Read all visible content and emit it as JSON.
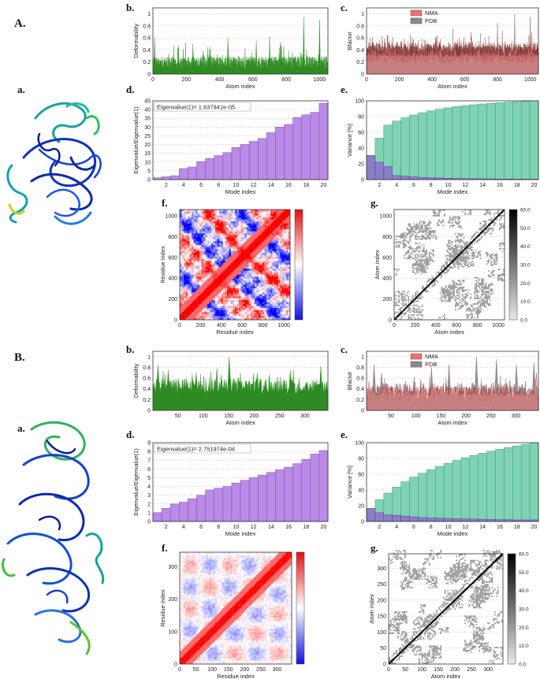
{
  "panel_labels": {
    "A": "A.",
    "Aa": "a.",
    "Ab": "b.",
    "Ac": "c.",
    "Ad": "d.",
    "Ae": "e.",
    "Af": "f.",
    "Ag": "g.",
    "B": "B.",
    "Ba": "a.",
    "Bb": "b.",
    "Bc": "c.",
    "Bd": "d.",
    "Be": "e.",
    "Bf": "f.",
    "Bg": "g."
  },
  "colors": {
    "deformability": "#2e8b22",
    "nma": "#f07070",
    "pdb": "#8a8a8a",
    "eigen_bar": "#b98be6",
    "variance_cum": "#7fd3b4",
    "variance_ind": "#8e6fc8",
    "cov_pos": "#e02020",
    "cov_neg": "#2030d0",
    "elastic": "#9a9a9a"
  },
  "chart_data": [
    {
      "id": "A_b",
      "type": "area",
      "xlabel": "Atom index",
      "ylabel": "Deformability",
      "xlim": [
        0,
        1050
      ],
      "ylim": [
        0,
        1.1
      ],
      "xticks": [
        0,
        200,
        400,
        600,
        800,
        1000
      ],
      "yticks": [
        0,
        0.2,
        0.4,
        0.6,
        0.8,
        1
      ],
      "n_points": 1050,
      "profile": [
        0.18,
        0.22,
        0.2,
        0.24,
        0.19,
        0.23,
        0.21,
        0.25,
        0.22,
        0.2,
        0.26,
        0.21
      ],
      "peaks": [
        [
          10,
          0.6
        ],
        [
          240,
          0.5
        ],
        [
          330,
          0.45
        ],
        [
          450,
          0.6
        ],
        [
          620,
          0.55
        ],
        [
          700,
          0.62
        ],
        [
          770,
          0.5
        ],
        [
          905,
          0.95
        ],
        [
          1000,
          0.9
        ]
      ]
    },
    {
      "id": "A_c",
      "type": "area",
      "xlabel": "Atom index",
      "ylabel": "Bfactor",
      "xlim": [
        0,
        1050
      ],
      "ylim": [
        0,
        1.1
      ],
      "xticks": [
        0,
        200,
        400,
        600,
        800,
        1000
      ],
      "yticks": [
        0,
        0.2,
        0.4,
        0.6,
        0.8,
        1
      ],
      "legend": [
        "NMA",
        "PDB"
      ],
      "legend_position": "top-left",
      "n_points": 1050,
      "peaks_pdb": [
        [
          130,
          0.65
        ],
        [
          420,
          0.6
        ],
        [
          640,
          0.7
        ],
        [
          800,
          0.85
        ],
        [
          905,
          1.0
        ],
        [
          1000,
          0.95
        ]
      ],
      "peaks_nma": [
        [
          20,
          0.6
        ],
        [
          140,
          0.55
        ],
        [
          210,
          0.55
        ],
        [
          450,
          0.5
        ],
        [
          640,
          0.6
        ],
        [
          1010,
          0.7
        ]
      ]
    },
    {
      "id": "A_d",
      "type": "bar",
      "xlabel": "Mode index",
      "ylabel": "Eigenvalue/Eigenvalue(1)",
      "annotation": "Eigenvalue(1)= 1.637941e-05",
      "x": [
        1,
        2,
        3,
        4,
        5,
        6,
        7,
        8,
        9,
        10,
        11,
        12,
        13,
        14,
        15,
        16,
        17,
        18,
        19,
        20
      ],
      "values": [
        1,
        1.6,
        2.2,
        6.3,
        7.2,
        10.3,
        12.1,
        13.7,
        15.4,
        18.4,
        20.1,
        21.8,
        23.5,
        26.8,
        30.0,
        31.5,
        35.5,
        37.0,
        38.4,
        43.6
      ],
      "xlim": [
        0.5,
        20.5
      ],
      "ylim": [
        0,
        45
      ],
      "xticks": [
        2,
        4,
        6,
        8,
        10,
        12,
        14,
        16,
        18,
        20
      ],
      "yticks": [
        0,
        5,
        10,
        15,
        20,
        25,
        30,
        35,
        40,
        45
      ]
    },
    {
      "id": "A_e",
      "type": "bar",
      "xlabel": "Mode index",
      "ylabel": "Variance [%]",
      "x": [
        1,
        2,
        3,
        4,
        5,
        6,
        7,
        8,
        9,
        10,
        11,
        12,
        13,
        14,
        15,
        16,
        17,
        18,
        19,
        20
      ],
      "series": [
        {
          "values": [
            30.5,
            52.6,
            69.2,
            74.3,
            78.5,
            82.0,
            84.9,
            87.3,
            89.4,
            91.1,
            92.6,
            93.9,
            95.0,
            96.0,
            96.9,
            97.6,
            98.3,
            98.9,
            99.5,
            100
          ]
        },
        {
          "values": [
            30.5,
            22.1,
            16.6,
            5.1,
            4.2,
            3.5,
            2.9,
            2.4,
            2.1,
            1.7,
            1.5,
            1.3,
            1.1,
            1.0,
            0.9,
            0.7,
            0.7,
            0.6,
            0.6,
            0.5
          ]
        }
      ],
      "xlim": [
        0.5,
        20.5
      ],
      "ylim": [
        0,
        100
      ],
      "xticks": [
        2,
        4,
        6,
        8,
        10,
        12,
        14,
        16,
        18,
        20
      ],
      "yticks": [
        0,
        20,
        40,
        60,
        80,
        100
      ]
    },
    {
      "id": "A_f",
      "type": "heatmap",
      "xlabel": "Residue index",
      "ylabel": "Residue index",
      "xlim": [
        0,
        1060
      ],
      "ylim": [
        0,
        1060
      ],
      "xticks": [
        0,
        200,
        400,
        600,
        800,
        1000
      ],
      "yticks": [
        0,
        200,
        400,
        600,
        800,
        1000
      ],
      "grid_n": 56
    },
    {
      "id": "A_g",
      "type": "heatmap",
      "xlabel": "Atom index",
      "ylabel": "Atom index",
      "xlim": [
        0,
        1060
      ],
      "ylim": [
        0,
        1060
      ],
      "xticks": [
        0,
        200,
        400,
        600,
        800,
        1000
      ],
      "yticks": [
        0,
        200,
        400,
        600,
        800,
        1000
      ],
      "colorbar_ticks": [
        "0.0",
        "10.0",
        "20.0",
        "30.0",
        "40.0",
        "50.0",
        "60.0"
      ],
      "grid_n": 80
    },
    {
      "id": "B_b",
      "type": "area",
      "xlabel": "Atom index",
      "ylabel": "Deformability",
      "xlim": [
        1,
        345
      ],
      "ylim": [
        0,
        1.1
      ],
      "xticks": [
        50,
        100,
        150,
        200,
        250,
        300
      ],
      "yticks": [
        0,
        0.2,
        0.4,
        0.6,
        0.8,
        1
      ],
      "n_points": 345,
      "peaks": [
        [
          10,
          0.85
        ],
        [
          30,
          0.75
        ],
        [
          85,
          0.7
        ],
        [
          150,
          1.0
        ],
        [
          205,
          0.7
        ],
        [
          270,
          0.75
        ],
        [
          330,
          0.82
        ]
      ]
    },
    {
      "id": "B_c",
      "type": "area",
      "xlabel": "Atom index",
      "ylabel": "Bfactor",
      "xlim": [
        1,
        345
      ],
      "ylim": [
        0,
        1.1
      ],
      "xticks": [
        50,
        100,
        150,
        200,
        250,
        300
      ],
      "yticks": [
        0,
        0.2,
        0.4,
        0.6,
        0.8,
        1
      ],
      "legend": [
        "NMA",
        "PDB"
      ],
      "legend_position": "top-left",
      "n_points": 345,
      "peaks_pdb": [
        [
          15,
          0.85
        ],
        [
          30,
          0.7
        ],
        [
          95,
          0.55
        ],
        [
          130,
          0.8
        ],
        [
          165,
          0.85
        ],
        [
          220,
          1.0
        ],
        [
          260,
          0.95
        ],
        [
          300,
          0.85
        ],
        [
          335,
          0.9
        ]
      ],
      "peaks_nma": [
        [
          5,
          0.55
        ],
        [
          60,
          0.5
        ],
        [
          150,
          0.45
        ],
        [
          250,
          0.5
        ],
        [
          340,
          0.7
        ]
      ]
    },
    {
      "id": "B_d",
      "type": "bar",
      "xlabel": "Mode index",
      "ylabel": "Eigenvalue/Eigenvalue(1)",
      "annotation": "Eigenvalue(1)= 2.751974e-04",
      "x": [
        1,
        2,
        3,
        4,
        5,
        6,
        7,
        8,
        9,
        10,
        11,
        12,
        13,
        14,
        15,
        16,
        17,
        18,
        19,
        20
      ],
      "values": [
        1,
        1.5,
        2.0,
        2.2,
        2.6,
        3.0,
        3.6,
        3.8,
        4.0,
        4.4,
        4.7,
        5.0,
        5.3,
        5.6,
        5.9,
        6.2,
        6.6,
        7.1,
        7.7,
        8.1
      ],
      "xlim": [
        0.5,
        20.5
      ],
      "ylim": [
        0,
        9
      ],
      "xticks": [
        2,
        4,
        6,
        8,
        10,
        12,
        14,
        16,
        18,
        20
      ],
      "yticks": [
        0,
        1,
        2,
        3,
        4,
        5,
        6,
        7,
        8,
        9
      ]
    },
    {
      "id": "B_e",
      "type": "bar",
      "xlabel": "Mode index",
      "ylabel": "Variance [%]",
      "x": [
        1,
        2,
        3,
        4,
        5,
        6,
        7,
        8,
        9,
        10,
        11,
        12,
        13,
        14,
        15,
        16,
        17,
        18,
        19,
        20
      ],
      "series": [
        {
          "values": [
            16.5,
            27.6,
            36.0,
            43.6,
            50.4,
            56.3,
            61.3,
            65.8,
            70.0,
            73.9,
            77.4,
            80.7,
            83.8,
            86.6,
            89.2,
            91.6,
            93.9,
            95.9,
            97.9,
            100
          ]
        },
        {
          "values": [
            16.5,
            11.1,
            8.4,
            7.6,
            6.8,
            5.9,
            5.0,
            4.5,
            4.2,
            3.9,
            3.5,
            3.3,
            3.1,
            2.8,
            2.6,
            2.4,
            2.3,
            2.0,
            2.0,
            2.1
          ]
        }
      ],
      "xlim": [
        0.5,
        20.5
      ],
      "ylim": [
        0,
        100
      ],
      "xticks": [
        2,
        4,
        6,
        8,
        10,
        12,
        14,
        16,
        18,
        20
      ],
      "yticks": [
        0,
        20,
        40,
        60,
        80,
        100
      ]
    },
    {
      "id": "B_f",
      "type": "heatmap",
      "xlabel": "Residue index",
      "ylabel": "Residue index",
      "xlim": [
        0,
        345
      ],
      "ylim": [
        0,
        345
      ],
      "xticks": [
        0,
        50,
        100,
        150,
        200,
        250,
        300
      ],
      "yticks": [
        0,
        100,
        200,
        300
      ],
      "grid_n": 60
    },
    {
      "id": "B_g",
      "type": "heatmap",
      "xlabel": "Atom index",
      "ylabel": "Atom index",
      "xlim": [
        0,
        345
      ],
      "ylim": [
        0,
        345
      ],
      "xticks": [
        0,
        50,
        100,
        150,
        200,
        250,
        300
      ],
      "yticks": [
        0,
        50,
        100,
        150,
        200,
        250,
        300
      ],
      "colorbar_ticks": [
        "0.0",
        "10.0",
        "20.0",
        "30.0",
        "40.0",
        "50.0",
        "60.0"
      ],
      "grid_n": 80
    }
  ]
}
